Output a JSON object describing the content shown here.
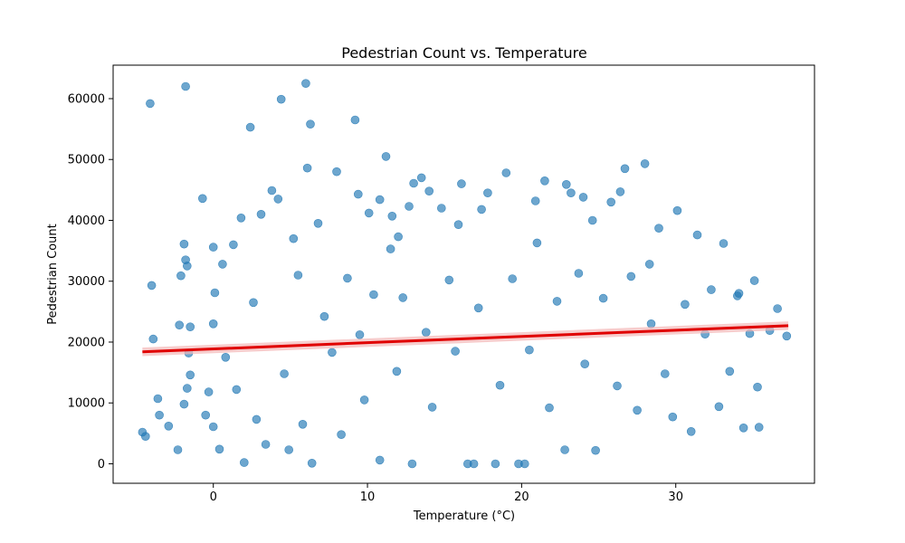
{
  "chart_data": {
    "type": "scatter",
    "title": "Pedestrian Count vs. Temperature",
    "xlabel": "Temperature (°C)",
    "ylabel": "Pedestrian Count",
    "xlim": [
      -6.5,
      39.0
    ],
    "ylim": [
      -3200,
      65500
    ],
    "xticks": [
      0,
      10,
      20,
      30
    ],
    "yticks": [
      0,
      10000,
      20000,
      30000,
      40000,
      50000,
      60000
    ],
    "xtick_labels": [
      "0",
      "10",
      "20",
      "30"
    ],
    "ytick_labels": [
      "0",
      "10000",
      "20000",
      "30000",
      "40000",
      "50000",
      "60000"
    ],
    "grid": false,
    "legend": "none",
    "colors": {
      "points": "#1f77b4",
      "regression": "#e00000",
      "ci_band": "#f4b8b8"
    },
    "regression": {
      "x": [
        -4.6,
        37.3
      ],
      "y": [
        18400,
        22700
      ]
    },
    "series": [
      {
        "points": [
          [
            -4.6,
            5200
          ],
          [
            -4.4,
            4500
          ],
          [
            -4.1,
            59200
          ],
          [
            -4.0,
            29300
          ],
          [
            -3.9,
            20500
          ],
          [
            -3.6,
            10700
          ],
          [
            -3.5,
            8000
          ],
          [
            -2.9,
            6200
          ],
          [
            -2.3,
            2300
          ],
          [
            -2.2,
            22800
          ],
          [
            -2.1,
            30900
          ],
          [
            -1.9,
            36100
          ],
          [
            -1.8,
            62000
          ],
          [
            -1.8,
            33500
          ],
          [
            -1.7,
            32500
          ],
          [
            -1.6,
            18200
          ],
          [
            -1.5,
            14600
          ],
          [
            -1.7,
            12400
          ],
          [
            -1.9,
            9800
          ],
          [
            -1.5,
            22500
          ],
          [
            -0.7,
            43600
          ],
          [
            -0.5,
            8000
          ],
          [
            -0.3,
            11800
          ],
          [
            0.0,
            35600
          ],
          [
            0.0,
            23000
          ],
          [
            0.0,
            6100
          ],
          [
            0.1,
            28100
          ],
          [
            0.4,
            2400
          ],
          [
            0.6,
            32800
          ],
          [
            0.8,
            17500
          ],
          [
            1.3,
            36000
          ],
          [
            1.5,
            12200
          ],
          [
            1.8,
            40400
          ],
          [
            2.0,
            200
          ],
          [
            2.4,
            55300
          ],
          [
            2.6,
            26500
          ],
          [
            2.8,
            7300
          ],
          [
            3.1,
            41000
          ],
          [
            3.4,
            3200
          ],
          [
            3.8,
            44900
          ],
          [
            4.2,
            43500
          ],
          [
            4.4,
            59900
          ],
          [
            4.6,
            14800
          ],
          [
            4.9,
            2300
          ],
          [
            5.2,
            37000
          ],
          [
            5.5,
            31000
          ],
          [
            5.8,
            6500
          ],
          [
            6.0,
            62500
          ],
          [
            6.1,
            48600
          ],
          [
            6.3,
            55800
          ],
          [
            6.4,
            100
          ],
          [
            6.8,
            39500
          ],
          [
            7.2,
            24200
          ],
          [
            7.7,
            18300
          ],
          [
            8.0,
            48000
          ],
          [
            8.3,
            4800
          ],
          [
            8.7,
            30500
          ],
          [
            9.2,
            56500
          ],
          [
            9.5,
            21200
          ],
          [
            9.8,
            10500
          ],
          [
            10.1,
            41200
          ],
          [
            10.4,
            27800
          ],
          [
            10.8,
            600
          ],
          [
            11.2,
            50500
          ],
          [
            11.5,
            35300
          ],
          [
            11.9,
            15200
          ],
          [
            12.3,
            27300
          ],
          [
            12.9,
            0
          ],
          [
            13.5,
            47000
          ],
          [
            13.8,
            21600
          ],
          [
            14.2,
            9300
          ],
          [
            14.8,
            42000
          ],
          [
            15.3,
            30200
          ],
          [
            15.7,
            18500
          ],
          [
            16.1,
            46000
          ],
          [
            16.5,
            0
          ],
          [
            16.9,
            0
          ],
          [
            17.2,
            25600
          ],
          [
            17.8,
            44500
          ],
          [
            18.3,
            0
          ],
          [
            18.6,
            12900
          ],
          [
            19.0,
            47800
          ],
          [
            19.4,
            30400
          ],
          [
            19.8,
            0
          ],
          [
            20.2,
            0
          ],
          [
            20.5,
            18700
          ],
          [
            21.0,
            36300
          ],
          [
            21.5,
            46500
          ],
          [
            21.8,
            9200
          ],
          [
            22.3,
            26700
          ],
          [
            22.8,
            2300
          ],
          [
            23.2,
            44500
          ],
          [
            23.7,
            31300
          ],
          [
            24.1,
            16400
          ],
          [
            24.6,
            40000
          ],
          [
            24.8,
            2200
          ],
          [
            25.3,
            27200
          ],
          [
            25.8,
            43000
          ],
          [
            26.2,
            12800
          ],
          [
            26.7,
            48500
          ],
          [
            27.1,
            30800
          ],
          [
            27.5,
            8800
          ],
          [
            28.0,
            49300
          ],
          [
            28.4,
            23000
          ],
          [
            28.9,
            38700
          ],
          [
            29.3,
            14800
          ],
          [
            29.8,
            7700
          ],
          [
            30.1,
            41600
          ],
          [
            30.6,
            26200
          ],
          [
            31.0,
            5300
          ],
          [
            31.4,
            37600
          ],
          [
            31.9,
            21300
          ],
          [
            32.3,
            28600
          ],
          [
            32.8,
            9400
          ],
          [
            33.1,
            36200
          ],
          [
            33.5,
            15200
          ],
          [
            34.0,
            27600
          ],
          [
            34.4,
            5900
          ],
          [
            34.8,
            21400
          ],
          [
            35.1,
            30100
          ],
          [
            35.3,
            12600
          ],
          [
            35.4,
            6000
          ],
          [
            36.1,
            21900
          ],
          [
            36.6,
            25500
          ],
          [
            37.2,
            21000
          ],
          [
            34.1,
            28000
          ],
          [
            13.0,
            46100
          ],
          [
            15.9,
            39300
          ],
          [
            14.0,
            44800
          ],
          [
            12.7,
            42300
          ],
          [
            10.8,
            43400
          ],
          [
            9.4,
            44300
          ],
          [
            12.0,
            37300
          ],
          [
            11.6,
            40700
          ],
          [
            17.4,
            41800
          ],
          [
            22.9,
            45900
          ],
          [
            20.9,
            43200
          ],
          [
            24.0,
            43800
          ],
          [
            26.4,
            44700
          ],
          [
            28.3,
            32800
          ]
        ]
      }
    ]
  }
}
